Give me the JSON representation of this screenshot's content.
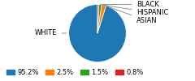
{
  "chart_data": {
    "type": "pie",
    "categories": [
      "WHITE",
      "ASIAN",
      "HISPANIC",
      "BLACK"
    ],
    "values": [
      95.2,
      2.5,
      1.5,
      0.8
    ],
    "value_labels": [
      "95.2%",
      "2.5%",
      "1.5%",
      "0.8%"
    ],
    "legend": "lower left"
  }
}
